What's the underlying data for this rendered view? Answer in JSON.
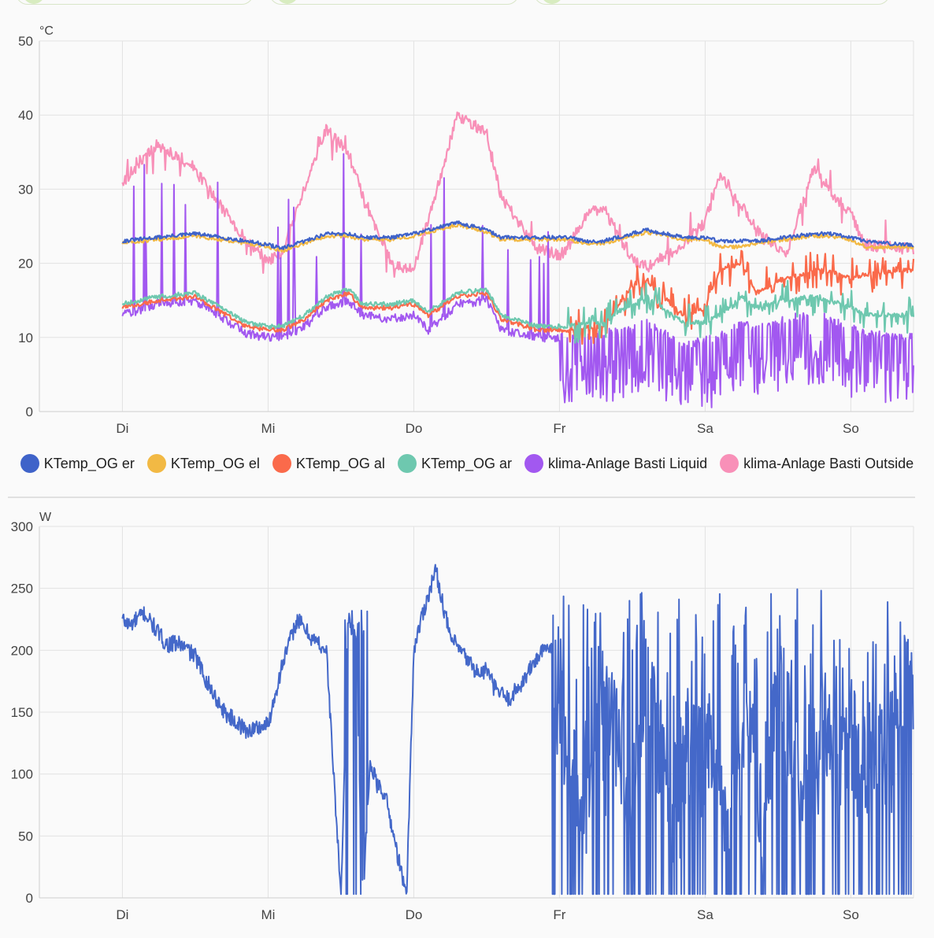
{
  "chart_data": [
    {
      "type": "line",
      "unit_label": "°C",
      "ylim": [
        0,
        50
      ],
      "y_ticks": [
        "0",
        "10",
        "20",
        "30",
        "40",
        "50"
      ],
      "x_ticks": [
        "Di",
        "Mi",
        "Do",
        "Fr",
        "Sa",
        "So"
      ],
      "grid": true,
      "legend_position": "bottom",
      "x_knots": [
        0.0,
        0.24,
        0.5,
        0.85,
        1.0,
        1.1,
        1.25,
        1.4,
        1.55,
        1.65,
        1.85,
        2.0,
        2.1,
        2.3,
        2.5,
        2.6,
        2.85,
        3.0,
        3.05,
        3.2,
        3.3,
        3.5,
        3.6,
        3.85,
        4.0,
        4.1,
        4.25,
        4.35,
        4.55,
        4.75,
        4.85,
        5.0,
        5.1,
        5.35
      ],
      "series": [
        {
          "name": "KTemp_OG er",
          "color": "#3f63c9",
          "values": [
            23.0,
            23.5,
            24.0,
            23.0,
            22.5,
            22.0,
            23.0,
            24.0,
            24.0,
            23.5,
            23.5,
            24.0,
            24.5,
            25.5,
            24.5,
            23.5,
            23.5,
            23.5,
            23.5,
            23.0,
            23.0,
            24.0,
            24.5,
            23.5,
            23.5,
            23.0,
            23.0,
            23.0,
            23.5,
            24.0,
            24.0,
            23.5,
            23.0,
            22.5
          ]
        },
        {
          "name": "KTemp_OG el",
          "color": "#f2b944",
          "values": [
            22.7,
            23.2,
            23.7,
            22.7,
            22.2,
            21.7,
            22.7,
            23.7,
            23.7,
            23.2,
            23.2,
            23.7,
            24.2,
            25.2,
            24.2,
            23.2,
            23.2,
            23.2,
            23.2,
            22.7,
            22.7,
            23.7,
            24.2,
            23.2,
            23.2,
            22.2,
            22.2,
            22.7,
            23.2,
            23.7,
            23.7,
            23.2,
            22.2,
            22.2
          ]
        },
        {
          "name": "KTemp_OG al",
          "color": "#fa6a4b",
          "values": [
            14.0,
            15.0,
            15.5,
            11.5,
            11.0,
            11.0,
            12.5,
            15.0,
            16.0,
            14.0,
            14.0,
            14.5,
            13.0,
            15.5,
            16.0,
            12.5,
            11.0,
            11.0,
            11.0,
            11.5,
            11.5,
            17.0,
            17.5,
            13.0,
            14.0,
            19.0,
            20.0,
            16.0,
            18.0,
            19.0,
            19.0,
            18.0,
            18.5,
            19.0
          ]
        },
        {
          "name": "KTemp_OG ar",
          "color": "#6ec8af",
          "values": [
            14.5,
            15.5,
            16.0,
            12.0,
            11.5,
            11.5,
            13.0,
            15.5,
            16.5,
            14.5,
            14.5,
            15.0,
            13.5,
            16.0,
            16.5,
            13.0,
            11.5,
            11.5,
            11.5,
            12.0,
            12.0,
            14.5,
            15.5,
            12.0,
            12.0,
            13.0,
            15.5,
            14.0,
            15.0,
            15.5,
            15.0,
            14.0,
            13.0,
            13.0
          ]
        },
        {
          "name": "klima-Anlage Basti Liquid",
          "color": "#a258f0",
          "values": [
            13.0,
            14.5,
            15.0,
            10.5,
            10.0,
            10.0,
            11.5,
            14.0,
            15.0,
            13.0,
            12.5,
            13.0,
            11.0,
            14.5,
            15.0,
            11.0,
            10.0,
            10.0,
            10.0,
            10.5,
            10.5,
            11.0,
            12.0,
            9.0,
            9.5,
            10.0,
            12.0,
            11.0,
            12.5,
            13.0,
            12.5,
            11.5,
            10.5,
            10.0
          ]
        },
        {
          "name": "klima-Anlage Basti Outside",
          "color": "#f890b8",
          "values": [
            31.0,
            36.0,
            32.5,
            23.0,
            20.5,
            21.5,
            30.0,
            38.0,
            35.0,
            29.0,
            20.0,
            19.0,
            26.0,
            40.0,
            37.5,
            29.0,
            22.0,
            21.0,
            22.0,
            27.0,
            27.5,
            20.5,
            19.5,
            22.5,
            25.5,
            32.0,
            28.0,
            24.5,
            21.0,
            33.0,
            30.0,
            26.5,
            22.5,
            22.0
          ]
        }
      ]
    },
    {
      "type": "line",
      "unit_label": "W",
      "ylim": [
        0,
        300
      ],
      "y_ticks": [
        "0",
        "50",
        "100",
        "150",
        "200",
        "250",
        "300"
      ],
      "x_ticks": [
        "Di",
        "Mi",
        "Do",
        "Fr",
        "Sa",
        "So"
      ],
      "grid": true,
      "series": [
        {
          "name": "",
          "color": "#4468c9",
          "x": [
            0.0,
            0.05,
            0.15,
            0.3,
            0.4,
            0.5,
            0.6,
            0.7,
            0.8,
            0.85,
            1.0,
            1.1,
            1.2,
            1.3,
            1.4,
            1.5,
            1.55,
            1.6,
            1.65,
            1.7,
            1.75,
            1.8,
            1.95,
            2.0,
            2.05,
            2.15,
            2.25,
            2.35,
            2.45,
            2.5,
            2.55,
            2.65,
            2.75,
            2.85,
            2.95,
            3.0,
            3.1,
            3.2,
            3.3,
            3.4,
            3.5,
            3.6,
            3.7,
            3.8,
            3.9,
            4.0,
            4.1,
            4.2,
            4.3,
            4.4,
            4.5,
            4.6,
            4.7,
            4.8,
            4.9,
            5.0,
            5.1,
            5.2,
            5.35
          ],
          "values": [
            225,
            220,
            230,
            205,
            205,
            195,
            170,
            150,
            140,
            135,
            140,
            190,
            225,
            210,
            200,
            0,
            225,
            210,
            0,
            110,
            90,
            85,
            0,
            200,
            225,
            265,
            210,
            195,
            180,
            185,
            170,
            160,
            175,
            195,
            205,
            150,
            100,
            80,
            190,
            120,
            60,
            200,
            110,
            40,
            160,
            120,
            80,
            60,
            150,
            40,
            190,
            120,
            80,
            150,
            100,
            130,
            100,
            140,
            180
          ]
        }
      ]
    }
  ]
}
